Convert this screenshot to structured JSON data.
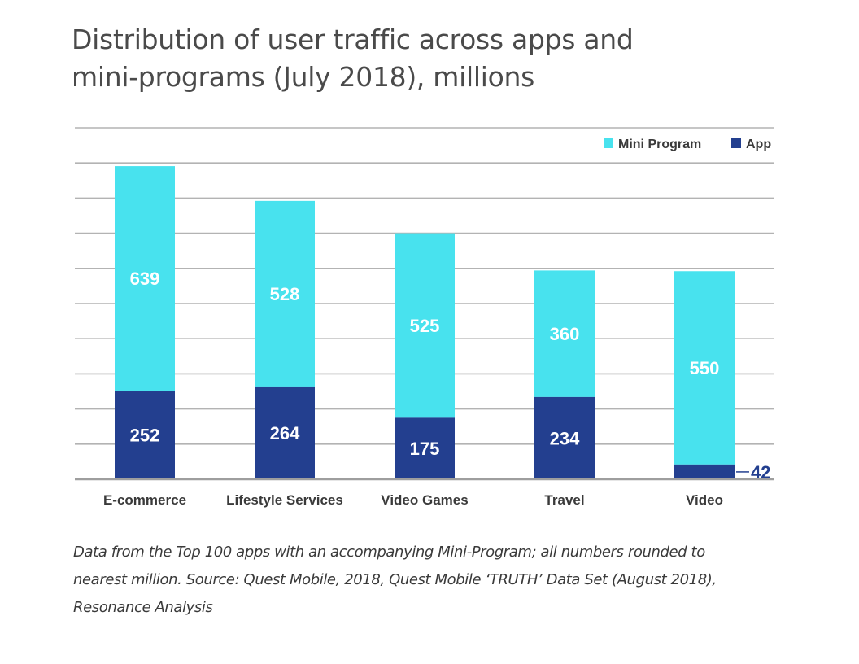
{
  "title": {
    "line1": "Distribution of user traffic across apps and",
    "line2": "mini-programs (July 2018), millions"
  },
  "caption": {
    "line1": "Data from the Top 100 apps with an accompanying Mini-Program; all numbers rounded to",
    "line2": "nearest million. Source: Quest Mobile, 2018, Quest Mobile ‘TRUTH’ Data Set (August 2018),",
    "line3": "Resonance Analysis"
  },
  "colors": {
    "mini_program": "#48e2ee",
    "app": "#233f8f",
    "grid": "#b3b3b3",
    "axis_label": "#3a3a3a",
    "bar_label": "#ffffff"
  },
  "chart_data": {
    "type": "bar",
    "stacked": true,
    "categories": [
      "E-commerce",
      "Lifestyle Services",
      "Video Games",
      "Travel",
      "Video"
    ],
    "series": [
      {
        "name": "App",
        "values": [
          252,
          264,
          175,
          234,
          42
        ]
      },
      {
        "name": "Mini Program",
        "values": [
          639,
          528,
          525,
          360,
          550
        ]
      }
    ],
    "legend": {
      "position": "top-right",
      "entries": [
        "Mini Program",
        "App"
      ]
    },
    "ylim": [
      0,
      1000
    ],
    "grid": true,
    "y_tick_labels_shown": false,
    "data_labels": true
  }
}
